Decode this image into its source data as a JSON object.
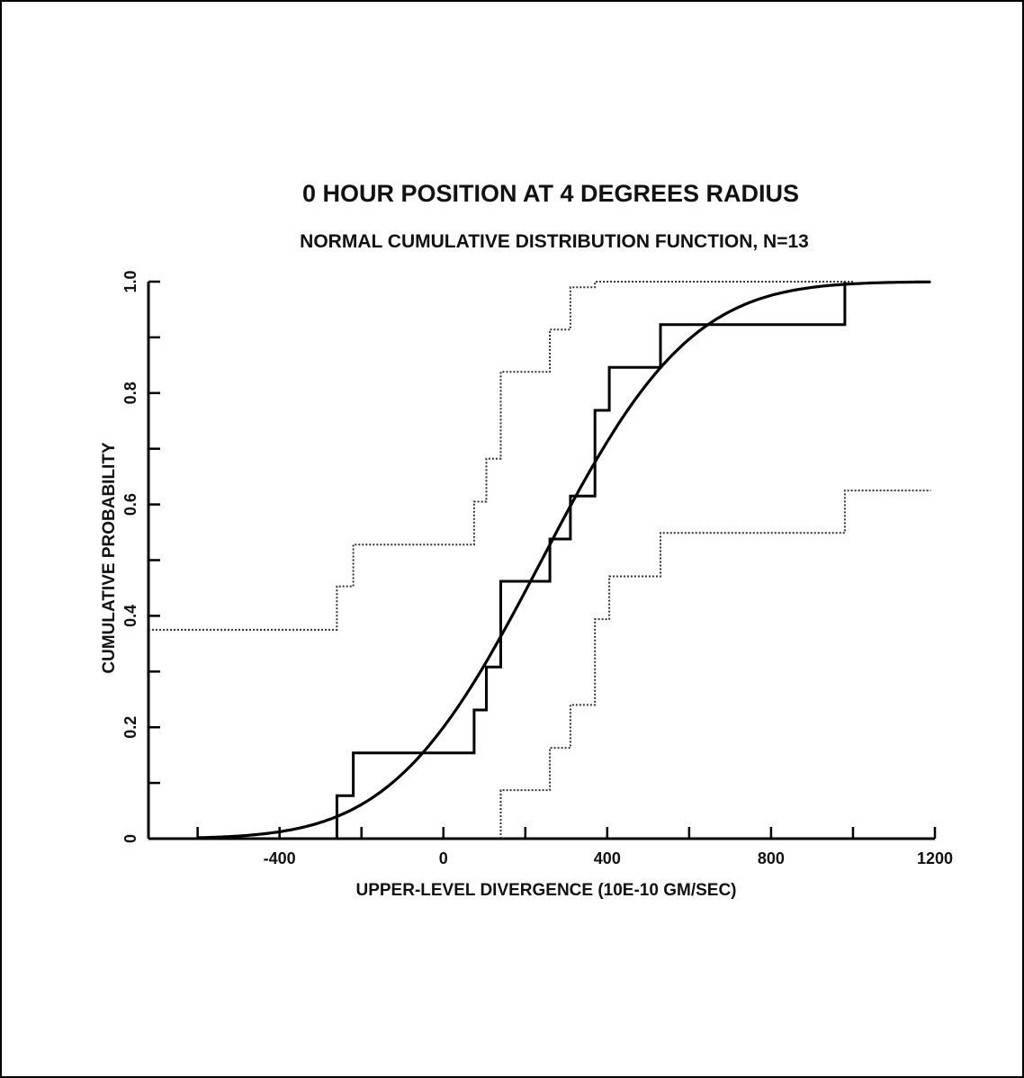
{
  "chart_data": {
    "type": "line",
    "title": "0 HOUR POSITION AT 4 DEGREES RADIUS",
    "subtitle": "NORMAL CUMULATIVE DISTRIBUTION FUNCTION, N=13",
    "xlabel": "UPPER-LEVEL DIVERGENCE (10E-10 GM/SEC)",
    "ylabel": "CUMULATIVE PROBABILITY",
    "xlim": [
      -720,
      1200
    ],
    "ylim": [
      0,
      1.0
    ],
    "x_ticks": [
      -600,
      -400,
      -200,
      0,
      200,
      400,
      600,
      800,
      1000,
      1200
    ],
    "x_tick_labels": [
      "-400",
      "0",
      "400",
      "800",
      "1200"
    ],
    "x_tick_label_values": [
      -400,
      0,
      400,
      800,
      1200
    ],
    "y_ticks": [
      0,
      0.1,
      0.2,
      0.3,
      0.4,
      0.5,
      0.6,
      0.7,
      0.8,
      0.9,
      1.0
    ],
    "y_tick_labels": [
      "0",
      "0.2",
      "0.4",
      "0.6",
      "0.8",
      "1.0"
    ],
    "y_tick_label_values": [
      0,
      0.2,
      0.4,
      0.6,
      0.8,
      1.0
    ],
    "grid": false,
    "legend": "none",
    "series": [
      {
        "style": "step-solid",
        "x": [
          -260,
          -220,
          75,
          105,
          140,
          260,
          310,
          370,
          405,
          530,
          980
        ],
        "y": [
          0.077,
          0.154,
          0.231,
          0.308,
          0.462,
          0.538,
          0.615,
          0.769,
          0.846,
          0.923,
          1.0
        ],
        "x_start": -260,
        "y_start": 0.0
      },
      {
        "style": "step-dotted",
        "x": [
          -260,
          -220,
          75,
          105,
          140,
          260,
          310,
          370,
          405,
          530,
          980
        ],
        "y": [
          0.453,
          0.528,
          0.605,
          0.682,
          0.838,
          0.914,
          0.99,
          1.0,
          1.0,
          1.0,
          1.0
        ],
        "x_start": -720,
        "y_start": 0.375,
        "x_end": 1000
      },
      {
        "style": "step-dotted",
        "x": [
          140,
          260,
          310,
          370,
          405,
          530,
          980
        ],
        "y": [
          0.087,
          0.163,
          0.24,
          0.394,
          0.471,
          0.549,
          0.625
        ],
        "x_start": 140,
        "y_start": 0.0,
        "x_end": 1190
      },
      {
        "style": "smooth-solid",
        "distribution": "normal",
        "mean": 240,
        "sd": 285,
        "x_range": [
          -600,
          1190
        ]
      }
    ]
  }
}
